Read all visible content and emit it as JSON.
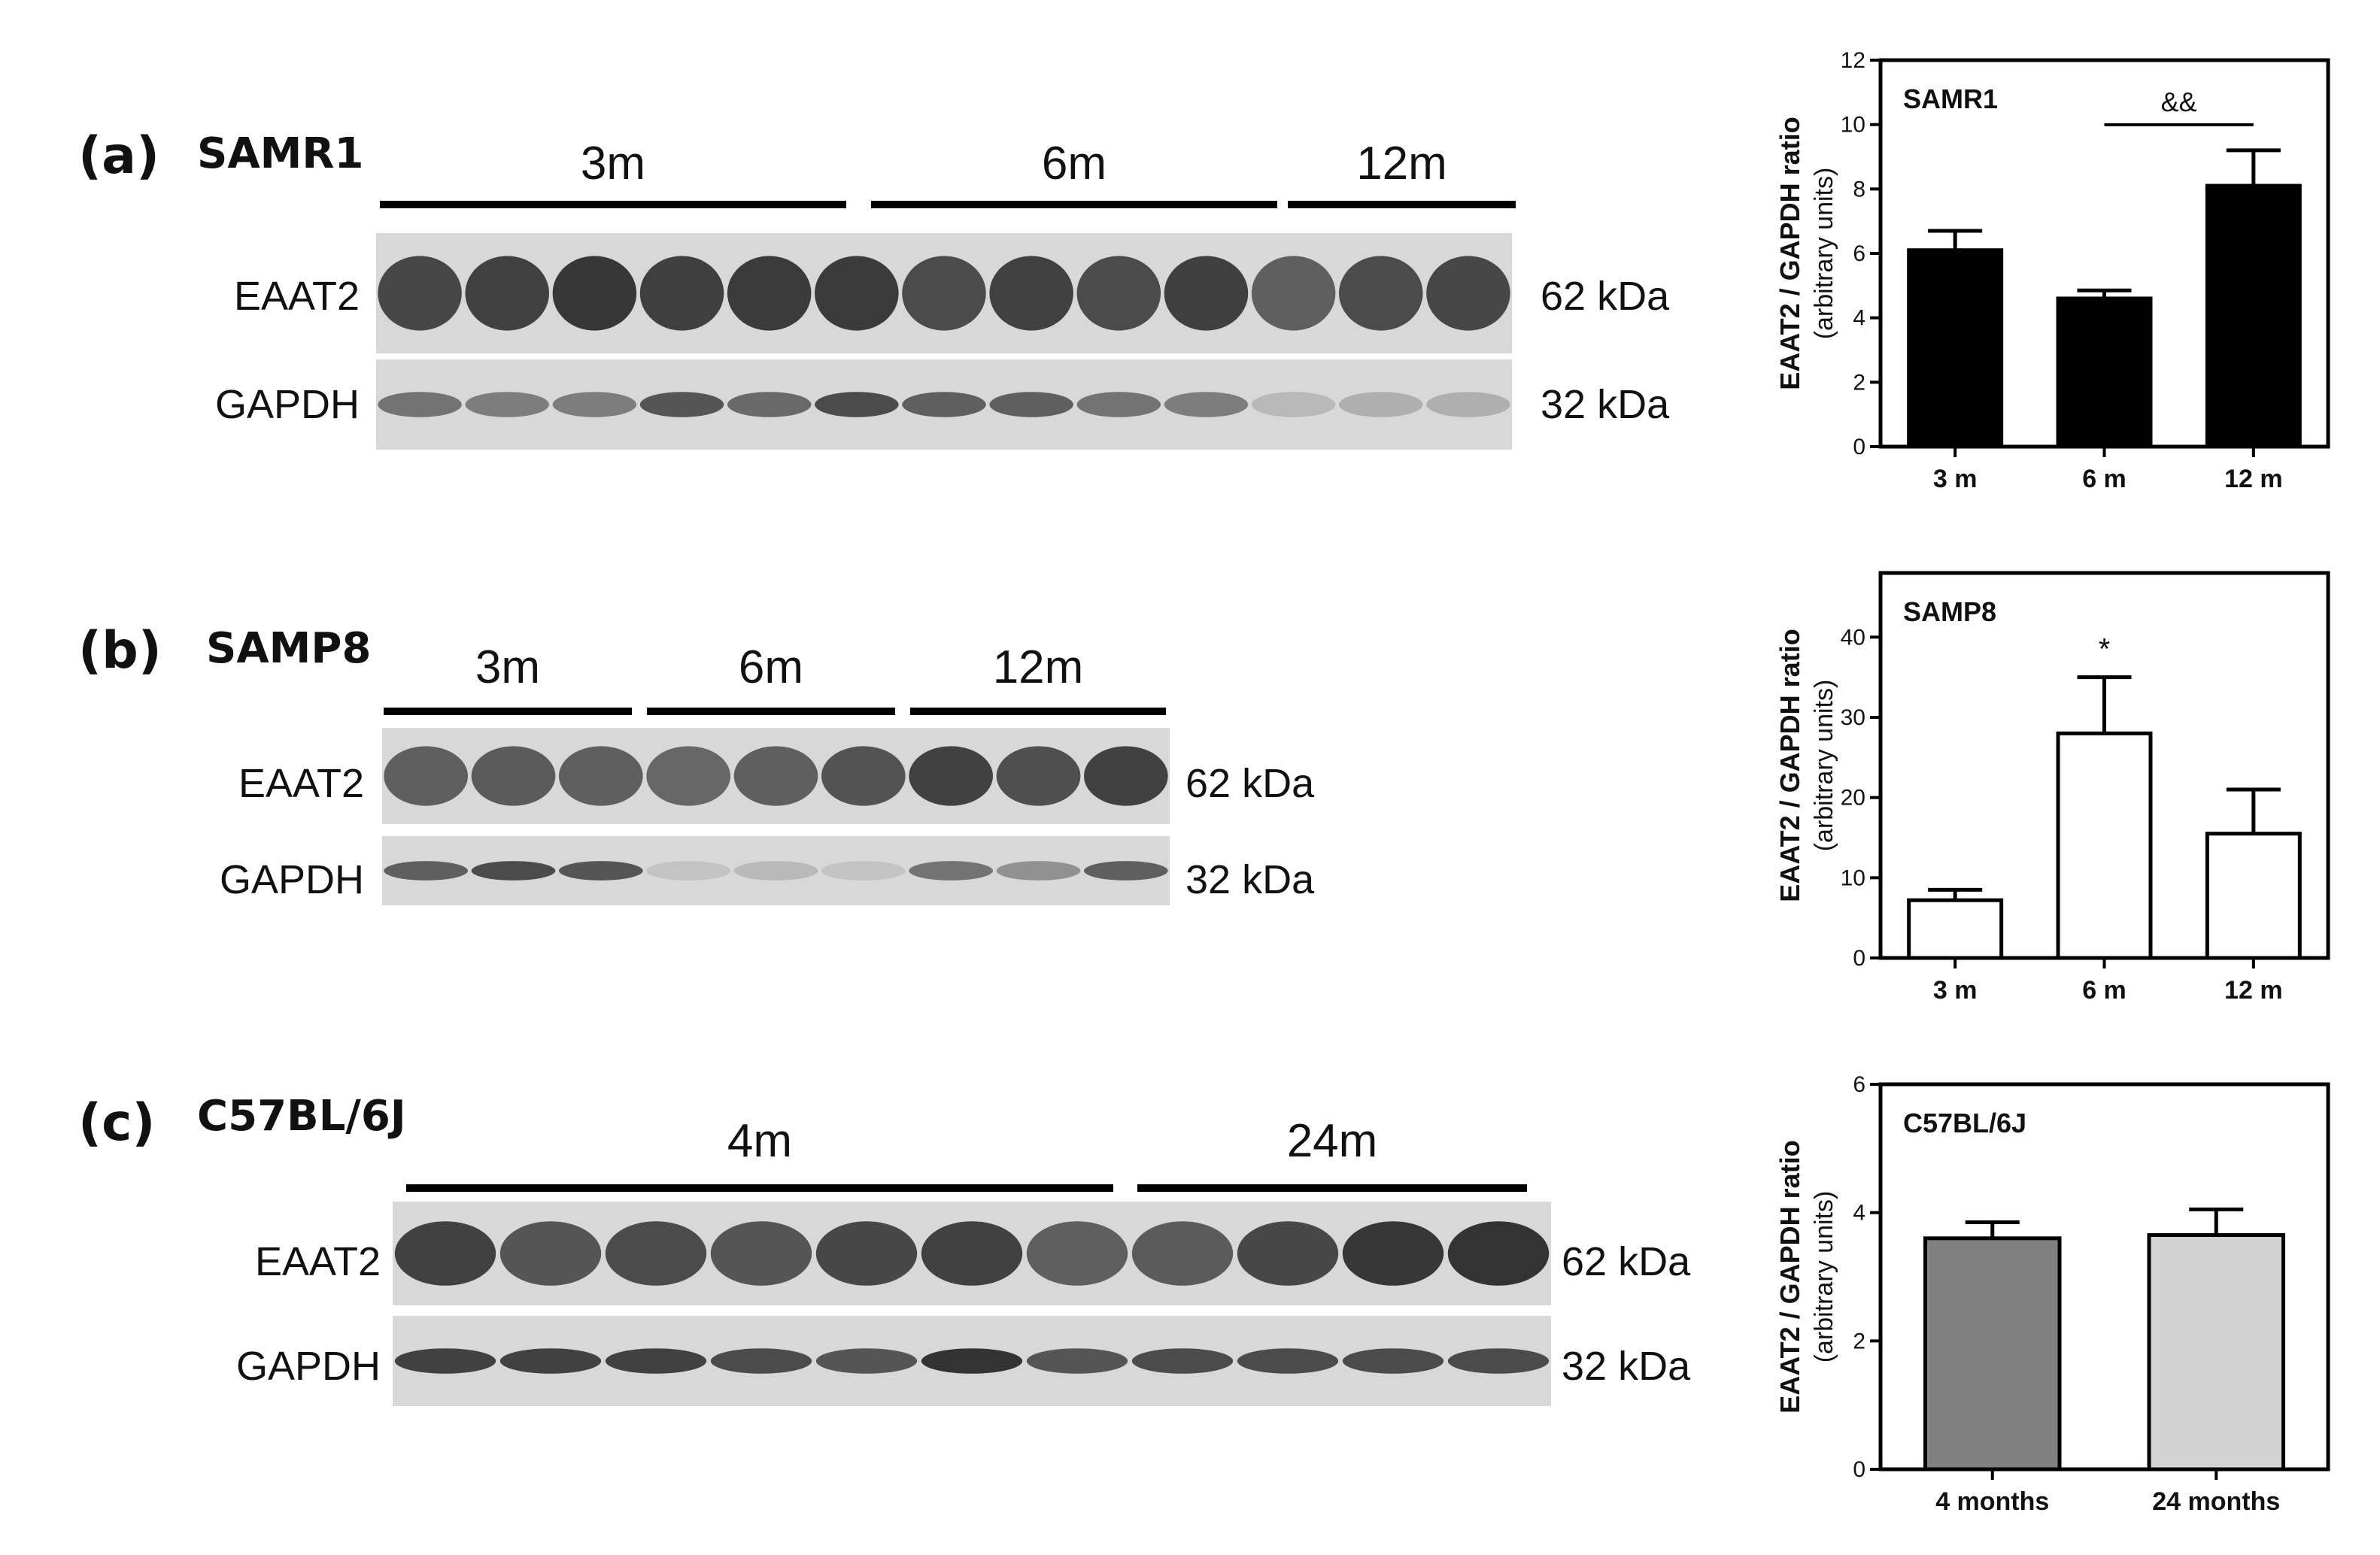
{
  "panels": [
    {
      "id": "a",
      "label": "(a)",
      "strain": "SAMR1",
      "blot": {
        "groups": [
          {
            "label": "3m",
            "lanes": 5
          },
          {
            "label": "6m",
            "lanes": 5
          },
          {
            "label": "12m",
            "lanes": 3
          }
        ],
        "bands": [
          {
            "name": "EAAT2",
            "size": "62 kDa",
            "intensity": [
              0.82,
              0.85,
              0.9,
              0.86,
              0.88,
              0.88,
              0.8,
              0.85,
              0.8,
              0.86,
              0.7,
              0.8,
              0.82
            ]
          },
          {
            "name": "GAPDH",
            "size": "32 kDa",
            "intensity": [
              0.6,
              0.55,
              0.55,
              0.75,
              0.65,
              0.8,
              0.7,
              0.7,
              0.6,
              0.55,
              0.25,
              0.3,
              0.3
            ]
          }
        ]
      }
    },
    {
      "id": "b",
      "label": "(b)",
      "strain": "SAMP8",
      "blot": {
        "groups": [
          {
            "label": "3m",
            "lanes": 3
          },
          {
            "label": "6m",
            "lanes": 3
          },
          {
            "label": "12m",
            "lanes": 3
          }
        ],
        "bands": [
          {
            "name": "EAAT2",
            "size": "62 kDa",
            "intensity": [
              0.7,
              0.72,
              0.7,
              0.66,
              0.7,
              0.76,
              0.85,
              0.78,
              0.85
            ]
          },
          {
            "name": "GAPDH",
            "size": "32 kDa",
            "intensity": [
              0.7,
              0.8,
              0.75,
              0.2,
              0.25,
              0.2,
              0.6,
              0.45,
              0.7
            ]
          }
        ]
      }
    },
    {
      "id": "c",
      "label": "(c)",
      "strain": "C57BL/6J",
      "blot": {
        "groups": [
          {
            "label": "4m",
            "lanes": 7
          },
          {
            "label": "24m",
            "lanes": 4
          }
        ],
        "bands": [
          {
            "name": "EAAT2",
            "size": "62 kDa",
            "intensity": [
              0.85,
              0.75,
              0.8,
              0.75,
              0.82,
              0.85,
              0.7,
              0.72,
              0.82,
              0.9,
              0.92
            ]
          },
          {
            "name": "GAPDH",
            "size": "32 kDa",
            "intensity": [
              0.85,
              0.85,
              0.85,
              0.8,
              0.75,
              0.92,
              0.75,
              0.8,
              0.8,
              0.8,
              0.8
            ]
          }
        ]
      }
    }
  ],
  "chart_data": [
    {
      "type": "bar",
      "title": "SAMR1",
      "categories": [
        "3 m",
        "6 m",
        "12 m"
      ],
      "values": [
        6.1,
        4.6,
        8.1
      ],
      "errors": [
        0.6,
        0.25,
        1.1
      ],
      "ylabel": "EAAT2 / GAPDH ratio",
      "ylabel2": "(arbitrary units)",
      "ylim": [
        0,
        12
      ],
      "yticks": [
        0,
        2,
        4,
        6,
        8,
        10,
        12
      ],
      "bar_colors": [
        "#000000",
        "#000000",
        "#000000"
      ],
      "annotations": [
        {
          "text": "&&",
          "type": "bracket",
          "from": "6 m",
          "to": "12 m"
        }
      ]
    },
    {
      "type": "bar",
      "title": "SAMP8",
      "categories": [
        "3 m",
        "6 m",
        "12 m"
      ],
      "values": [
        7.2,
        28,
        15.5
      ],
      "errors": [
        1.3,
        7,
        5.5
      ],
      "ylabel": "EAAT2 / GAPDH ratio",
      "ylabel2": "(arbitrary units)",
      "ylim": [
        0,
        48
      ],
      "yticks": [
        0,
        10,
        20,
        30,
        40
      ],
      "bar_colors": [
        "#ffffff",
        "#ffffff",
        "#ffffff"
      ],
      "annotations": [
        {
          "text": "*",
          "type": "above",
          "at": "6 m"
        }
      ]
    },
    {
      "type": "bar",
      "title": "C57BL/6J",
      "categories": [
        "4 months",
        "24 months"
      ],
      "values": [
        3.6,
        3.65
      ],
      "errors": [
        0.25,
        0.4
      ],
      "ylabel": "EAAT2 / GAPDH ratio",
      "ylabel2": "(arbitrary units)",
      "ylim": [
        0,
        6
      ],
      "yticks": [
        0,
        2,
        4,
        6
      ],
      "bar_colors": [
        "#808080",
        "#d3d3d3"
      ],
      "annotations": []
    }
  ]
}
